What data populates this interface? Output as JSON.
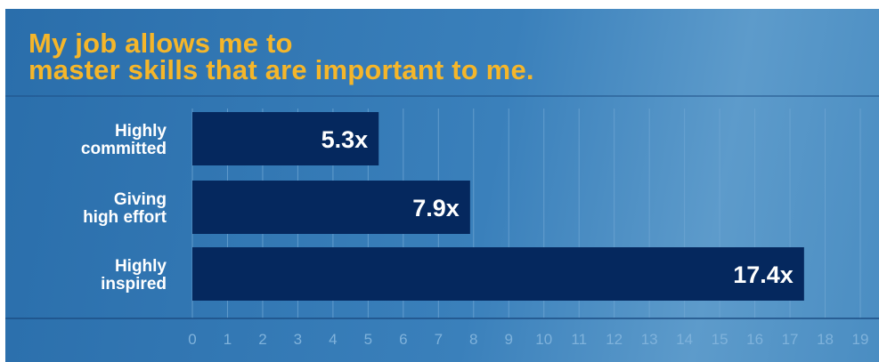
{
  "chart_data": {
    "type": "bar",
    "orientation": "horizontal",
    "title_lines": [
      "My job allows me to",
      "master skills that are important to me."
    ],
    "categories": [
      [
        "Highly",
        "committed"
      ],
      [
        "Giving",
        "high effort"
      ],
      [
        "Highly",
        "inspired"
      ]
    ],
    "values": [
      5.3,
      7.9,
      17.4
    ],
    "value_labels": [
      "5.3x",
      "7.9x",
      "17.4x"
    ],
    "xlim": [
      0,
      19
    ],
    "ticks": [
      "0",
      "1",
      "2",
      "3",
      "4",
      "5",
      "6",
      "7",
      "8",
      "9",
      "10",
      "11",
      "12",
      "13",
      "14",
      "15",
      "16",
      "17",
      "18",
      "19"
    ],
    "grid": true,
    "colors": {
      "title": "#f5b62a",
      "bar": "#05285e",
      "grid": "#6fa6d3",
      "tick": "#7fb2db",
      "axis": "#1d4f85"
    }
  }
}
